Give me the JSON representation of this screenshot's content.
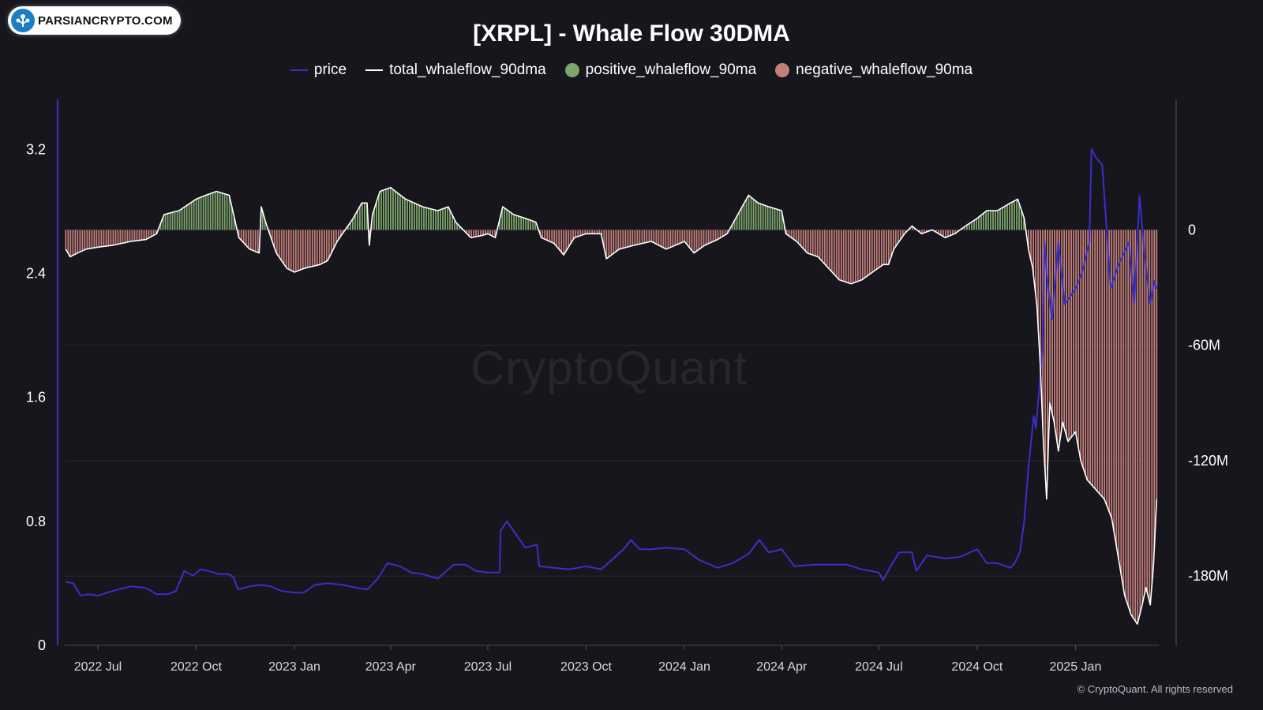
{
  "logo": {
    "text": "PARSIANCRYPTO.COM",
    "icon": "tree-network-icon"
  },
  "footer": "© CryptoQuant. All rights reserved",
  "watermark": "CryptoQuant",
  "colors": {
    "background": "#17161d",
    "price": "#3b2fc9",
    "total": "#ffffff",
    "positive": "#7da66c",
    "negative": "#c47f7a",
    "grid": "#2b2a33"
  },
  "chart_data": {
    "type": "line",
    "title": "[XRPL] - Whale Flow 30DMA",
    "legend": [
      {
        "name": "price",
        "marker": "line",
        "color": "#3b2fc9"
      },
      {
        "name": "total_whaleflow_90dma",
        "marker": "line",
        "color": "#ffffff"
      },
      {
        "name": "positive_whaleflow_90ma",
        "marker": "dot",
        "color": "#7da66c"
      },
      {
        "name": "negative_whaleflow_90ma",
        "marker": "dot",
        "color": "#c47f7a"
      }
    ],
    "legend_position": "top-center",
    "x_range": [
      "2022-05-31",
      "2025-03-20"
    ],
    "x_ticks": [
      {
        "date": "2022-07-01",
        "label": "2022 Jul"
      },
      {
        "date": "2022-10-01",
        "label": "2022 Oct"
      },
      {
        "date": "2023-01-01",
        "label": "2023 Jan"
      },
      {
        "date": "2023-04-01",
        "label": "2023 Apr"
      },
      {
        "date": "2023-07-01",
        "label": "2023 Jul"
      },
      {
        "date": "2023-10-01",
        "label": "2023 Oct"
      },
      {
        "date": "2024-01-01",
        "label": "2024 Jan"
      },
      {
        "date": "2024-04-01",
        "label": "2024 Apr"
      },
      {
        "date": "2024-07-01",
        "label": "2024 Jul"
      },
      {
        "date": "2024-10-01",
        "label": "2024 Oct"
      },
      {
        "date": "2025-01-01",
        "label": "2025 Jan"
      }
    ],
    "y_left": {
      "label": "",
      "range": [
        0,
        3.4
      ],
      "ticks": [
        0,
        0.8,
        1.6,
        2.4,
        3.2
      ],
      "tick_labels": [
        "0",
        "0.8",
        "1.6",
        "2.4",
        "3.2"
      ]
    },
    "y_right": {
      "label": "",
      "range": [
        -216,
        58
      ],
      "ticks": [
        0,
        -60,
        -120,
        -180
      ],
      "tick_labels": [
        "0",
        "-60M",
        "-120M",
        "-180M"
      ],
      "unit": "millions"
    },
    "grid": true,
    "series": [
      {
        "name": "price",
        "axis": "left",
        "color": "#3b2fc9",
        "points": [
          [
            "2022-06-01",
            0.41
          ],
          [
            "2022-06-08",
            0.4
          ],
          [
            "2022-06-15",
            0.32
          ],
          [
            "2022-06-22",
            0.33
          ],
          [
            "2022-07-01",
            0.32
          ],
          [
            "2022-07-10",
            0.34
          ],
          [
            "2022-07-20",
            0.36
          ],
          [
            "2022-08-01",
            0.38
          ],
          [
            "2022-08-15",
            0.37
          ],
          [
            "2022-08-25",
            0.33
          ],
          [
            "2022-09-05",
            0.33
          ],
          [
            "2022-09-12",
            0.35
          ],
          [
            "2022-09-20",
            0.48
          ],
          [
            "2022-09-28",
            0.45
          ],
          [
            "2022-10-05",
            0.49
          ],
          [
            "2022-10-12",
            0.48
          ],
          [
            "2022-10-22",
            0.46
          ],
          [
            "2022-10-31",
            0.46
          ],
          [
            "2022-11-05",
            0.44
          ],
          [
            "2022-11-09",
            0.36
          ],
          [
            "2022-11-20",
            0.38
          ],
          [
            "2022-12-01",
            0.39
          ],
          [
            "2022-12-10",
            0.38
          ],
          [
            "2022-12-20",
            0.35
          ],
          [
            "2023-01-01",
            0.34
          ],
          [
            "2023-01-10",
            0.34
          ],
          [
            "2023-01-20",
            0.39
          ],
          [
            "2023-02-01",
            0.4
          ],
          [
            "2023-02-15",
            0.39
          ],
          [
            "2023-03-01",
            0.37
          ],
          [
            "2023-03-10",
            0.36
          ],
          [
            "2023-03-20",
            0.43
          ],
          [
            "2023-03-29",
            0.53
          ],
          [
            "2023-04-10",
            0.51
          ],
          [
            "2023-04-20",
            0.47
          ],
          [
            "2023-05-01",
            0.46
          ],
          [
            "2023-05-15",
            0.43
          ],
          [
            "2023-05-30",
            0.52
          ],
          [
            "2023-06-10",
            0.52
          ],
          [
            "2023-06-20",
            0.48
          ],
          [
            "2023-07-01",
            0.47
          ],
          [
            "2023-07-12",
            0.47
          ],
          [
            "2023-07-13",
            0.74
          ],
          [
            "2023-07-19",
            0.8
          ],
          [
            "2023-07-28",
            0.71
          ],
          [
            "2023-08-05",
            0.63
          ],
          [
            "2023-08-16",
            0.65
          ],
          [
            "2023-08-18",
            0.51
          ],
          [
            "2023-09-01",
            0.5
          ],
          [
            "2023-09-15",
            0.49
          ],
          [
            "2023-10-01",
            0.51
          ],
          [
            "2023-10-15",
            0.49
          ],
          [
            "2023-10-25",
            0.55
          ],
          [
            "2023-11-05",
            0.62
          ],
          [
            "2023-11-12",
            0.68
          ],
          [
            "2023-11-20",
            0.62
          ],
          [
            "2023-12-01",
            0.62
          ],
          [
            "2023-12-15",
            0.63
          ],
          [
            "2024-01-01",
            0.62
          ],
          [
            "2024-01-15",
            0.55
          ],
          [
            "2024-02-01",
            0.5
          ],
          [
            "2024-02-15",
            0.53
          ],
          [
            "2024-03-01",
            0.59
          ],
          [
            "2024-03-11",
            0.68
          ],
          [
            "2024-03-20",
            0.6
          ],
          [
            "2024-04-01",
            0.62
          ],
          [
            "2024-04-13",
            0.51
          ],
          [
            "2024-05-01",
            0.52
          ],
          [
            "2024-05-20",
            0.52
          ],
          [
            "2024-06-01",
            0.52
          ],
          [
            "2024-06-15",
            0.49
          ],
          [
            "2024-07-01",
            0.47
          ],
          [
            "2024-07-05",
            0.42
          ],
          [
            "2024-07-12",
            0.51
          ],
          [
            "2024-07-20",
            0.6
          ],
          [
            "2024-08-01",
            0.6
          ],
          [
            "2024-08-05",
            0.48
          ],
          [
            "2024-08-15",
            0.58
          ],
          [
            "2024-09-01",
            0.56
          ],
          [
            "2024-09-15",
            0.57
          ],
          [
            "2024-10-01",
            0.62
          ],
          [
            "2024-10-10",
            0.53
          ],
          [
            "2024-10-20",
            0.53
          ],
          [
            "2024-11-01",
            0.5
          ],
          [
            "2024-11-05",
            0.53
          ],
          [
            "2024-11-10",
            0.6
          ],
          [
            "2024-11-14",
            0.8
          ],
          [
            "2024-11-18",
            1.15
          ],
          [
            "2024-11-23",
            1.48
          ],
          [
            "2024-11-25",
            1.4
          ],
          [
            "2024-12-01",
            1.9
          ],
          [
            "2024-12-03",
            2.6
          ],
          [
            "2024-12-05",
            2.4
          ],
          [
            "2024-12-10",
            2.1
          ],
          [
            "2024-12-16",
            2.6
          ],
          [
            "2024-12-22",
            2.2
          ],
          [
            "2025-01-01",
            2.3
          ],
          [
            "2025-01-07",
            2.4
          ],
          [
            "2025-01-14",
            2.6
          ],
          [
            "2025-01-16",
            3.2
          ],
          [
            "2025-01-20",
            3.15
          ],
          [
            "2025-01-26",
            3.1
          ],
          [
            "2025-02-03",
            2.3
          ],
          [
            "2025-02-10",
            2.45
          ],
          [
            "2025-02-20",
            2.6
          ],
          [
            "2025-02-25",
            2.2
          ],
          [
            "2025-03-02",
            2.9
          ],
          [
            "2025-03-07",
            2.5
          ],
          [
            "2025-03-12",
            2.2
          ],
          [
            "2025-03-16",
            2.35
          ],
          [
            "2025-03-18",
            2.3
          ]
        ]
      },
      {
        "name": "total_whaleflow_90dma",
        "axis": "right",
        "color": "#ffffff",
        "points": [
          [
            "2022-06-01",
            -10
          ],
          [
            "2022-06-05",
            -14
          ],
          [
            "2022-06-12",
            -12
          ],
          [
            "2022-06-20",
            -10
          ],
          [
            "2022-07-01",
            -9
          ],
          [
            "2022-07-15",
            -8
          ],
          [
            "2022-08-01",
            -6
          ],
          [
            "2022-08-15",
            -5
          ],
          [
            "2022-08-25",
            -2
          ],
          [
            "2022-09-01",
            8
          ],
          [
            "2022-09-15",
            10
          ],
          [
            "2022-10-01",
            16
          ],
          [
            "2022-10-10",
            18
          ],
          [
            "2022-10-20",
            20
          ],
          [
            "2022-11-01",
            18
          ],
          [
            "2022-11-05",
            8
          ],
          [
            "2022-11-10",
            -4
          ],
          [
            "2022-11-20",
            -10
          ],
          [
            "2022-11-29",
            -12
          ],
          [
            "2022-12-01",
            12
          ],
          [
            "2022-12-05",
            4
          ],
          [
            "2022-12-15",
            -12
          ],
          [
            "2022-12-25",
            -20
          ],
          [
            "2023-01-01",
            -22
          ],
          [
            "2023-01-10",
            -20
          ],
          [
            "2023-01-25",
            -18
          ],
          [
            "2023-02-01",
            -16
          ],
          [
            "2023-02-10",
            -6
          ],
          [
            "2023-02-25",
            6
          ],
          [
            "2023-03-05",
            14
          ],
          [
            "2023-03-10",
            14
          ],
          [
            "2023-03-12",
            -8
          ],
          [
            "2023-03-15",
            8
          ],
          [
            "2023-03-22",
            20
          ],
          [
            "2023-04-01",
            22
          ],
          [
            "2023-04-15",
            16
          ],
          [
            "2023-05-01",
            12
          ],
          [
            "2023-05-15",
            10
          ],
          [
            "2023-05-25",
            12
          ],
          [
            "2023-06-01",
            4
          ],
          [
            "2023-06-15",
            -4
          ],
          [
            "2023-06-25",
            -3
          ],
          [
            "2023-07-01",
            -2
          ],
          [
            "2023-07-08",
            -4
          ],
          [
            "2023-07-15",
            12
          ],
          [
            "2023-07-25",
            8
          ],
          [
            "2023-08-05",
            6
          ],
          [
            "2023-08-15",
            4
          ],
          [
            "2023-08-20",
            -4
          ],
          [
            "2023-09-01",
            -7
          ],
          [
            "2023-09-10",
            -13
          ],
          [
            "2023-09-20",
            -4
          ],
          [
            "2023-10-01",
            -2
          ],
          [
            "2023-10-15",
            -2
          ],
          [
            "2023-10-20",
            -15
          ],
          [
            "2023-11-01",
            -10
          ],
          [
            "2023-11-15",
            -8
          ],
          [
            "2023-12-01",
            -6
          ],
          [
            "2023-12-15",
            -10
          ],
          [
            "2024-01-01",
            -6
          ],
          [
            "2024-01-10",
            -12
          ],
          [
            "2024-01-20",
            -8
          ],
          [
            "2024-02-01",
            -5
          ],
          [
            "2024-02-10",
            -2
          ],
          [
            "2024-02-20",
            8
          ],
          [
            "2024-03-01",
            18
          ],
          [
            "2024-03-10",
            14
          ],
          [
            "2024-03-20",
            12
          ],
          [
            "2024-04-01",
            10
          ],
          [
            "2024-04-05",
            -2
          ],
          [
            "2024-04-15",
            -6
          ],
          [
            "2024-04-25",
            -12
          ],
          [
            "2024-05-05",
            -14
          ],
          [
            "2024-05-15",
            -20
          ],
          [
            "2024-05-25",
            -26
          ],
          [
            "2024-06-05",
            -28
          ],
          [
            "2024-06-15",
            -26
          ],
          [
            "2024-06-25",
            -22
          ],
          [
            "2024-07-05",
            -18
          ],
          [
            "2024-07-10",
            -18
          ],
          [
            "2024-07-15",
            -10
          ],
          [
            "2024-07-25",
            -2
          ],
          [
            "2024-08-01",
            2
          ],
          [
            "2024-08-10",
            -2
          ],
          [
            "2024-08-20",
            0
          ],
          [
            "2024-09-01",
            -4
          ],
          [
            "2024-09-10",
            -2
          ],
          [
            "2024-09-20",
            2
          ],
          [
            "2024-10-01",
            6
          ],
          [
            "2024-10-10",
            10
          ],
          [
            "2024-10-20",
            10
          ],
          [
            "2024-11-01",
            14
          ],
          [
            "2024-11-08",
            16
          ],
          [
            "2024-11-14",
            6
          ],
          [
            "2024-11-18",
            -10
          ],
          [
            "2024-11-22",
            -20
          ],
          [
            "2024-11-26",
            -40
          ],
          [
            "2024-11-29",
            -70
          ],
          [
            "2024-12-02",
            -110
          ],
          [
            "2024-12-05",
            -140
          ],
          [
            "2024-12-08",
            -90
          ],
          [
            "2024-12-12",
            -100
          ],
          [
            "2024-12-16",
            -115
          ],
          [
            "2024-12-20",
            -100
          ],
          [
            "2024-12-25",
            -110
          ],
          [
            "2025-01-01",
            -105
          ],
          [
            "2025-01-06",
            -120
          ],
          [
            "2025-01-12",
            -130
          ],
          [
            "2025-01-20",
            -135
          ],
          [
            "2025-01-28",
            -140
          ],
          [
            "2025-02-04",
            -150
          ],
          [
            "2025-02-10",
            -170
          ],
          [
            "2025-02-16",
            -190
          ],
          [
            "2025-02-22",
            -200
          ],
          [
            "2025-02-28",
            -205
          ],
          [
            "2025-03-04",
            -196
          ],
          [
            "2025-03-08",
            -186
          ],
          [
            "2025-03-12",
            -195
          ],
          [
            "2025-03-15",
            -175
          ],
          [
            "2025-03-18",
            -140
          ]
        ]
      }
    ]
  }
}
